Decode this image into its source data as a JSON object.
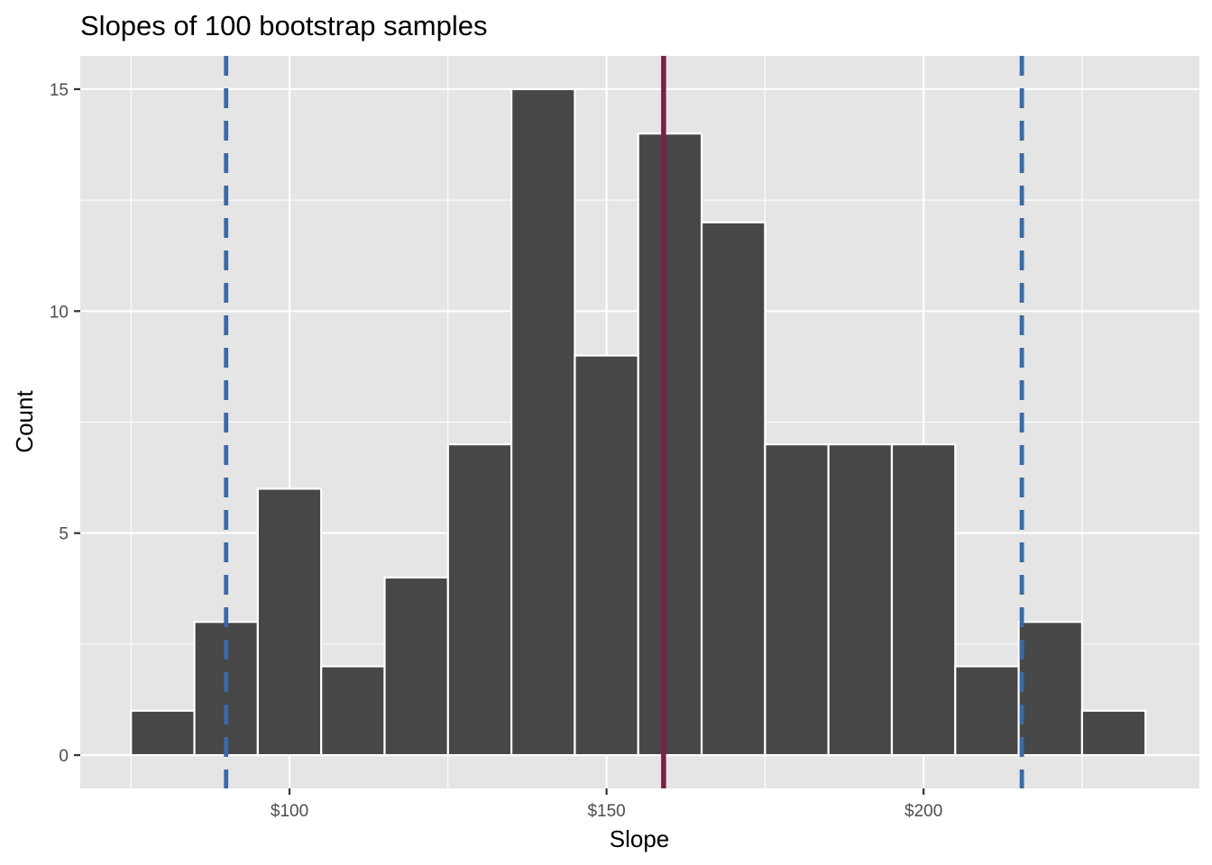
{
  "chart_data": {
    "type": "histogram",
    "title": "Slopes of 100 bootstrap samples",
    "xlabel": "Slope",
    "ylabel": "Count",
    "bin_width": 10,
    "bin_centers": [
      80,
      90,
      100,
      110,
      120,
      130,
      140,
      150,
      160,
      170,
      180,
      190,
      200,
      210,
      220,
      230
    ],
    "counts": [
      1,
      3,
      6,
      2,
      4,
      7,
      15,
      9,
      14,
      12,
      7,
      7,
      7,
      2,
      3,
      1
    ],
    "x_ticks": [
      100,
      150,
      200
    ],
    "x_tick_labels": [
      "$100",
      "$150",
      "$200"
    ],
    "y_ticks": [
      0,
      5,
      10,
      15
    ],
    "y_tick_labels": [
      "0",
      "5",
      "10",
      "15"
    ],
    "xlim": [
      67,
      243.5
    ],
    "ylim": [
      -0.75,
      15.75
    ],
    "grid": true,
    "reference_lines": [
      {
        "x": 159,
        "style": "solid",
        "color": "#7a1f45"
      },
      {
        "x": 90,
        "style": "dashed",
        "color": "#3a6aa5"
      },
      {
        "x": 215.5,
        "style": "dashed",
        "color": "#3a6aa5"
      }
    ],
    "colors": {
      "panel_background": "#e5e5e5",
      "grid": "#ffffff",
      "bar_fill": "#474747",
      "bar_outline": "#ffffff"
    }
  }
}
